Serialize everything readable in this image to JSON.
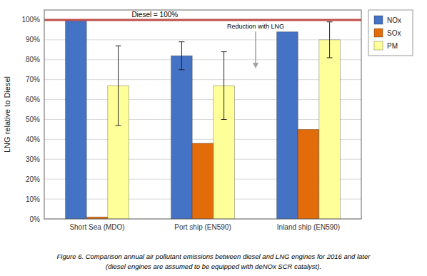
{
  "chart_data": {
    "type": "bar",
    "ylabel": "LNG relative to Diesel",
    "categories": [
      "Short Sea (MDO)",
      "Port ship (EN590)",
      "Inland ship (EN590)"
    ],
    "series": [
      {
        "name": "NOx",
        "color": "#4472C4",
        "values": [
          100,
          82,
          94
        ],
        "errors": [
          0,
          7,
          0
        ]
      },
      {
        "name": "SOx",
        "color": "#E36C0A",
        "values": [
          1,
          38,
          45
        ],
        "errors": [
          0,
          0,
          0
        ]
      },
      {
        "name": "PM",
        "color": "#FFFF99",
        "values": [
          67,
          67,
          90
        ],
        "errors": [
          20,
          17,
          9
        ]
      }
    ],
    "ylim": [
      0,
      105
    ],
    "yticks": [
      {
        "value": 0,
        "label": "0%"
      },
      {
        "value": 10,
        "label": "10%"
      },
      {
        "value": 20,
        "label": "20%"
      },
      {
        "value": 30,
        "label": "30%"
      },
      {
        "value": 40,
        "label": "40%"
      },
      {
        "value": 50,
        "label": "50%"
      },
      {
        "value": 60,
        "label": "60%"
      },
      {
        "value": 70,
        "label": "70%"
      },
      {
        "value": 80,
        "label": "80%"
      },
      {
        "value": 90,
        "label": "90%"
      },
      {
        "value": 100,
        "label": "100%"
      }
    ],
    "grid": true,
    "legend": "right",
    "reference_line": {
      "value": 100,
      "label": "Diesel = 100%",
      "color": "#C0504D"
    },
    "annotations": [
      {
        "text": "Reduction with LNG"
      }
    ],
    "caption": [
      "Figure 6. Comparison annual air pollutant emissions between diesel and LNG engines for 2016 and later",
      "(diesel engines are assumed to be equipped with deNOx SCR catalyst)."
    ]
  }
}
